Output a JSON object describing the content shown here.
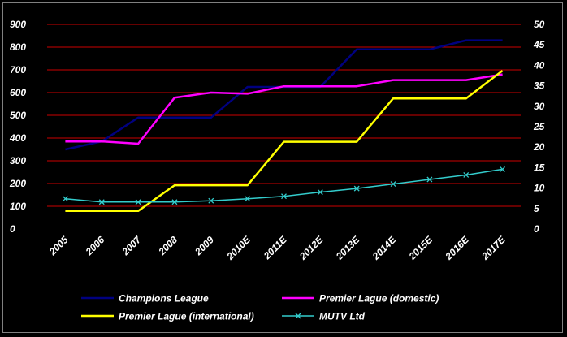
{
  "chart_data": {
    "type": "line",
    "categories": [
      "2005",
      "2006",
      "2007",
      "2008",
      "2009",
      "2010E",
      "2011E",
      "2012E",
      "2013E",
      "2014E",
      "2015E",
      "2016E",
      "2017E"
    ],
    "y_left": {
      "ylim": [
        0,
        900
      ],
      "ticks": [
        0,
        100,
        200,
        300,
        400,
        500,
        600,
        700,
        800,
        900
      ]
    },
    "y_right": {
      "ylim": [
        0,
        50
      ],
      "ticks": [
        0,
        5,
        10,
        15,
        20,
        25,
        30,
        35,
        40,
        45,
        50
      ]
    },
    "grid": true,
    "gridline_color": "#cc0000",
    "background": "#000000",
    "legend_position": "bottom",
    "series": [
      {
        "name": "Champions League",
        "axis": "left",
        "color": "#000080",
        "marker": "none",
        "values": [
          350,
          385,
          490,
          490,
          490,
          625,
          625,
          625,
          790,
          790,
          790,
          830,
          830
        ]
      },
      {
        "name": "Premier Lague (domestic)",
        "axis": "left",
        "color": "#ff00ff",
        "marker": "none",
        "values": [
          385,
          385,
          375,
          578,
          600,
          595,
          628,
          628,
          628,
          655,
          655,
          655,
          680
        ]
      },
      {
        "name": "Premier Lague (international)",
        "axis": "right",
        "color": "#ffff00",
        "marker": "none",
        "values": [
          4.4,
          4.4,
          4.4,
          10.7,
          10.7,
          10.7,
          21.3,
          21.3,
          21.3,
          31.9,
          31.9,
          31.9,
          38.7
        ]
      },
      {
        "name": "MUTV Ltd",
        "axis": "right",
        "color": "#33cccc",
        "marker": "x",
        "values": [
          7.4,
          6.6,
          6.6,
          6.6,
          6.9,
          7.4,
          8.0,
          9.0,
          9.9,
          11.0,
          12.1,
          13.2,
          14.6
        ]
      }
    ]
  }
}
